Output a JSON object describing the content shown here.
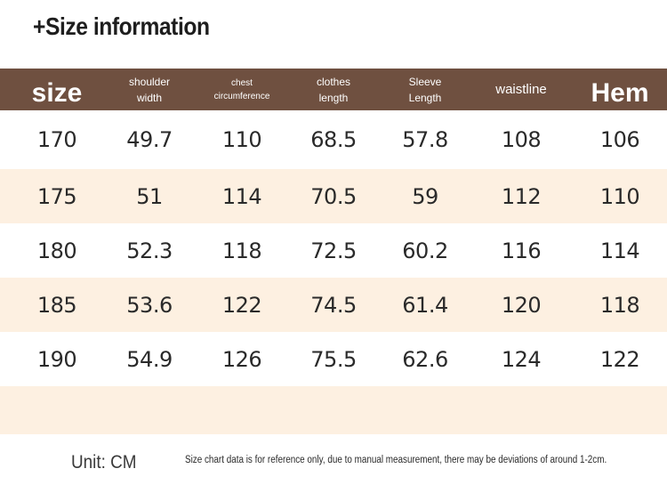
{
  "title": "+Size information",
  "headers": [
    {
      "lines": [
        "size"
      ],
      "style": "big"
    },
    {
      "lines": [
        "shoulder",
        "width"
      ],
      "style": "sm"
    },
    {
      "lines": [
        "chest",
        "circumference"
      ],
      "style": "xs"
    },
    {
      "lines": [
        "clothes",
        "length"
      ],
      "style": "sm"
    },
    {
      "lines": [
        "Sleeve",
        "Length"
      ],
      "style": "sm"
    },
    {
      "lines": [
        "waistline"
      ],
      "style": "mid"
    },
    {
      "lines": [
        "Hem"
      ],
      "style": "big"
    }
  ],
  "rows": [
    [
      "170",
      "49.7",
      "110",
      "68.5",
      "57.8",
      "108",
      "106"
    ],
    [
      "175",
      "51",
      "114",
      "70.5",
      "59",
      "112",
      "110"
    ],
    [
      "180",
      "52.3",
      "118",
      "72.5",
      "60.2",
      "116",
      "114"
    ],
    [
      "185",
      "53.6",
      "122",
      "74.5",
      "61.4",
      "120",
      "118"
    ],
    [
      "190",
      "54.9",
      "126",
      "75.5",
      "62.6",
      "124",
      "122"
    ]
  ],
  "unit": "Unit: CM",
  "note": "Size chart data is for reference only, due to manual measurement, there may be deviations of around 1-2cm.",
  "colors": {
    "header_bg": "#6f5040",
    "alt_row_bg": "#fdf0e1"
  }
}
